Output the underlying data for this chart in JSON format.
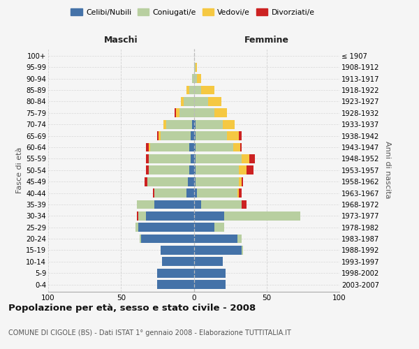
{
  "age_groups": [
    "0-4",
    "5-9",
    "10-14",
    "15-19",
    "20-24",
    "25-29",
    "30-34",
    "35-39",
    "40-44",
    "45-49",
    "50-54",
    "55-59",
    "60-64",
    "65-69",
    "70-74",
    "75-79",
    "80-84",
    "85-89",
    "90-94",
    "95-99",
    "100+"
  ],
  "birth_years": [
    "2003-2007",
    "1998-2002",
    "1993-1997",
    "1988-1992",
    "1983-1987",
    "1978-1982",
    "1973-1977",
    "1968-1972",
    "1963-1967",
    "1958-1962",
    "1953-1957",
    "1948-1952",
    "1943-1947",
    "1938-1942",
    "1933-1937",
    "1928-1932",
    "1923-1927",
    "1918-1922",
    "1913-1917",
    "1908-1912",
    "≤ 1907"
  ],
  "male": {
    "celibi": [
      25,
      25,
      22,
      23,
      36,
      38,
      33,
      27,
      5,
      4,
      3,
      2,
      3,
      2,
      1,
      0,
      0,
      0,
      0,
      0,
      0
    ],
    "coniugati": [
      0,
      0,
      0,
      0,
      1,
      2,
      5,
      12,
      22,
      28,
      28,
      29,
      27,
      21,
      18,
      10,
      7,
      3,
      1,
      0,
      0
    ],
    "vedovi": [
      0,
      0,
      0,
      0,
      0,
      0,
      0,
      0,
      0,
      0,
      0,
      0,
      1,
      1,
      2,
      2,
      2,
      2,
      0,
      0,
      0
    ],
    "divorziati": [
      0,
      0,
      0,
      0,
      0,
      0,
      1,
      0,
      1,
      2,
      2,
      2,
      2,
      1,
      0,
      1,
      0,
      0,
      0,
      0,
      0
    ]
  },
  "female": {
    "nubili": [
      22,
      22,
      20,
      33,
      30,
      14,
      21,
      5,
      2,
      1,
      1,
      1,
      1,
      1,
      1,
      0,
      0,
      0,
      0,
      0,
      0
    ],
    "coniugate": [
      0,
      0,
      0,
      1,
      3,
      7,
      52,
      28,
      28,
      30,
      30,
      32,
      26,
      22,
      19,
      14,
      10,
      5,
      2,
      1,
      0
    ],
    "vedove": [
      0,
      0,
      0,
      0,
      0,
      0,
      0,
      0,
      1,
      2,
      5,
      5,
      5,
      8,
      8,
      9,
      9,
      9,
      3,
      1,
      0
    ],
    "divorziate": [
      0,
      0,
      0,
      0,
      0,
      0,
      0,
      3,
      2,
      1,
      5,
      4,
      1,
      2,
      0,
      0,
      0,
      0,
      0,
      0,
      0
    ]
  },
  "colors": {
    "celibi": "#4472a8",
    "coniugati": "#b8cfa0",
    "vedovi": "#f5c842",
    "divorziati": "#cc2222"
  },
  "title": "Popolazione per età, sesso e stato civile - 2008",
  "subtitle": "COMUNE DI CIGOLE (BS) - Dati ISTAT 1° gennaio 2008 - Elaborazione TUTTITALIA.IT",
  "xlabel_left": "Maschi",
  "xlabel_right": "Femmine",
  "ylabel_left": "Fasce di età",
  "ylabel_right": "Anni di nascita",
  "xlim": 100,
  "bg_color": "#f5f5f5",
  "grid_color": "#cccccc"
}
